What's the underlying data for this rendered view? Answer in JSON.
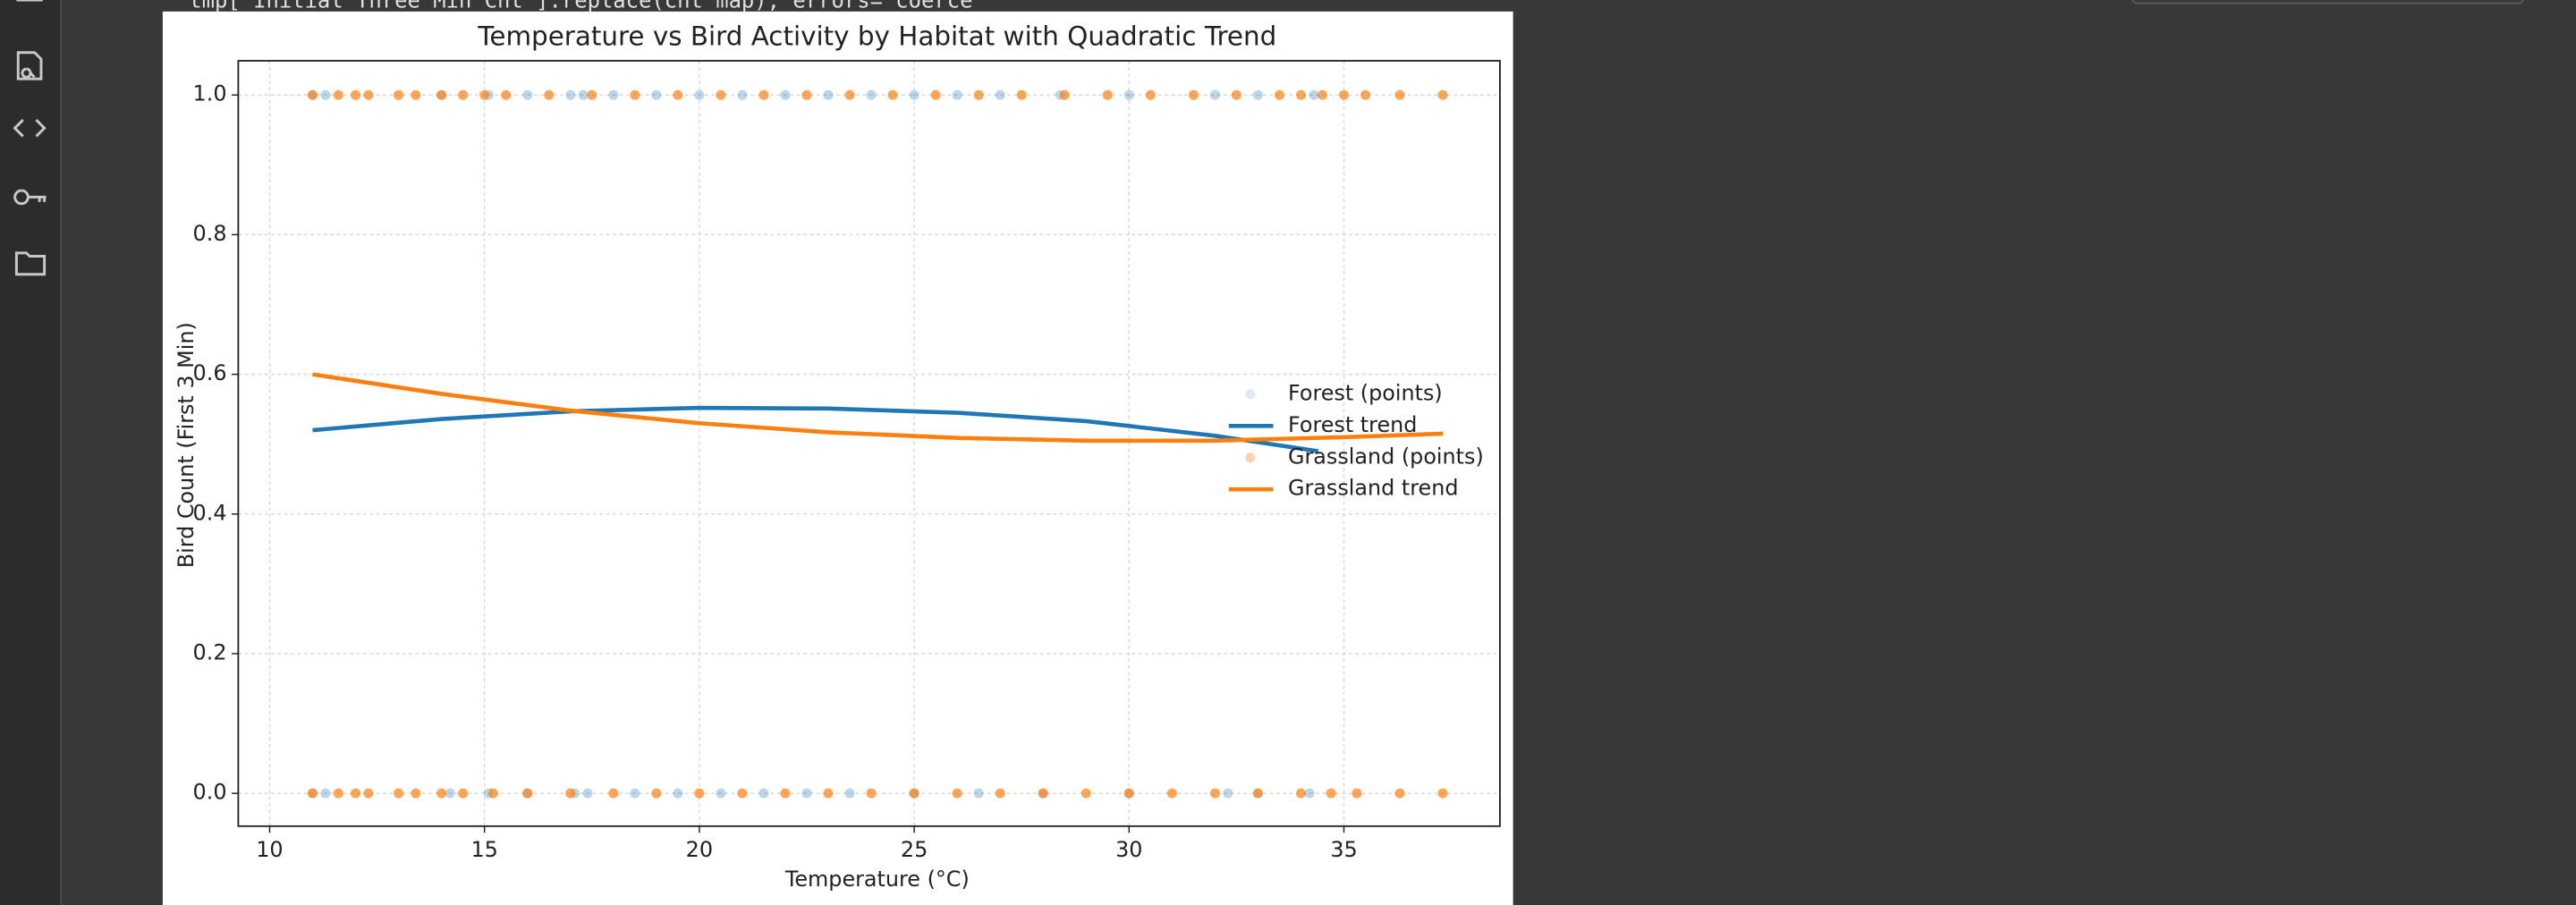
{
  "code_line": "tmp['Initial_Three_Min_Cnt'].replace(cnt_map), errors='coerce'",
  "chart_data": {
    "type": "scatter",
    "title": "Temperature vs Bird Activity by Habitat with Quadratic Trend",
    "x_label": "Temperature (°C)",
    "y_label": "Bird Count (First 3 Min)",
    "xlim": [
      9.27,
      38.63
    ],
    "ylim": [
      -0.047,
      1.049
    ],
    "xticks": [
      10,
      15,
      20,
      25,
      30,
      35
    ],
    "yticks": [
      {
        "value": 0,
        "label": "0.0"
      },
      {
        "value": 0.2,
        "label": "0.2"
      },
      {
        "value": 0.4,
        "label": "0.4"
      },
      {
        "value": 0.6,
        "label": "0.6"
      },
      {
        "value": 0.8,
        "label": "0.8"
      },
      {
        "value": 1,
        "label": "1.0"
      }
    ],
    "grid": true,
    "legend": "center right",
    "series": [
      {
        "name": "Forest (points)",
        "type": "scatter",
        "color": "#1f77b4",
        "alpha": 0.3,
        "x": [
          11,
          11.3,
          14,
          15.1,
          16,
          17,
          17.3,
          18,
          19,
          20,
          21,
          22,
          23,
          24,
          25,
          26,
          27,
          28.4,
          30,
          32,
          33,
          34.3,
          11,
          11.3,
          14.2,
          15.1,
          16,
          17.1,
          17.4,
          18.5,
          19.5,
          20.5,
          21.5,
          22.5,
          23.5,
          25,
          26.5,
          28,
          30,
          32.3,
          33,
          34.2
        ],
        "values": [
          1,
          1,
          1,
          1,
          1,
          1,
          1,
          1,
          1,
          1,
          1,
          1,
          1,
          1,
          1,
          1,
          1,
          1,
          1,
          1,
          1,
          1,
          0,
          0,
          0,
          0,
          0,
          0,
          0,
          0,
          0,
          0,
          0,
          0,
          0,
          0,
          0,
          0,
          0,
          0,
          0,
          0
        ]
      },
      {
        "name": "Forest trend",
        "type": "line",
        "color": "#1f77b4",
        "x": [
          11,
          14,
          17,
          20,
          23,
          26,
          29,
          32,
          34.4
        ],
        "values": [
          0.52,
          0.536,
          0.547,
          0.552,
          0.551,
          0.545,
          0.533,
          0.512,
          0.49
        ]
      },
      {
        "name": "Grassland (points)",
        "type": "scatter",
        "color": "#ff7f0e",
        "alpha": 0.7,
        "x": [
          11,
          11.6,
          12,
          12.3,
          13,
          13.4,
          14,
          14.5,
          15,
          15.5,
          16.5,
          17.5,
          18.5,
          19.5,
          20.5,
          21.5,
          22.5,
          23.5,
          24.5,
          25.5,
          26.5,
          27.5,
          28.5,
          29.5,
          30.5,
          31.5,
          32.5,
          33.5,
          34,
          34.5,
          35,
          35.5,
          36.3,
          37.3,
          11,
          11.6,
          12,
          12.3,
          13,
          13.4,
          14,
          14.5,
          15.2,
          16,
          17,
          18,
          19,
          20,
          21,
          22,
          23,
          24,
          25,
          26,
          27,
          28,
          29,
          30,
          31,
          32,
          33,
          34,
          34.7,
          35.3,
          36.3,
          37.3
        ],
        "values": [
          1,
          1,
          1,
          1,
          1,
          1,
          1,
          1,
          1,
          1,
          1,
          1,
          1,
          1,
          1,
          1,
          1,
          1,
          1,
          1,
          1,
          1,
          1,
          1,
          1,
          1,
          1,
          1,
          1,
          1,
          1,
          1,
          1,
          1,
          0,
          0,
          0,
          0,
          0,
          0,
          0,
          0,
          0,
          0,
          0,
          0,
          0,
          0,
          0,
          0,
          0,
          0,
          0,
          0,
          0,
          0,
          0,
          0,
          0,
          0,
          0,
          0,
          0,
          0,
          0,
          0
        ]
      },
      {
        "name": "Grassland trend",
        "type": "line",
        "color": "#ff7f0e",
        "x": [
          11,
          14,
          17,
          20,
          23,
          26,
          29,
          32,
          35,
          37.3
        ],
        "values": [
          0.6,
          0.572,
          0.548,
          0.53,
          0.517,
          0.509,
          0.505,
          0.505,
          0.51,
          0.515
        ]
      }
    ]
  }
}
